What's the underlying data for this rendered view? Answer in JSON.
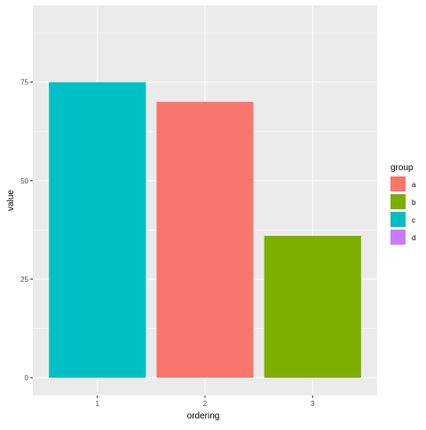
{
  "chart_data": {
    "type": "bar",
    "categories": [
      "1",
      "2",
      "3"
    ],
    "values": [
      75,
      70,
      36
    ],
    "bar_groups": [
      "c",
      "a",
      "b"
    ],
    "xlabel": "ordering",
    "ylabel": "value",
    "ylim": [
      -4.5,
      94.5
    ],
    "y_ticks": [
      0,
      25,
      50,
      75
    ],
    "y_tick_labels": [
      "0",
      "25",
      "50",
      "75"
    ],
    "grid": true,
    "background": "#EBEBEB",
    "legend": {
      "title": "group",
      "position": "right",
      "items": [
        {
          "label": "a",
          "color": "#F8766D"
        },
        {
          "label": "b",
          "color": "#7CAE00"
        },
        {
          "label": "c",
          "color": "#00BFC4"
        },
        {
          "label": "d",
          "color": "#C77CFF"
        }
      ]
    }
  }
}
